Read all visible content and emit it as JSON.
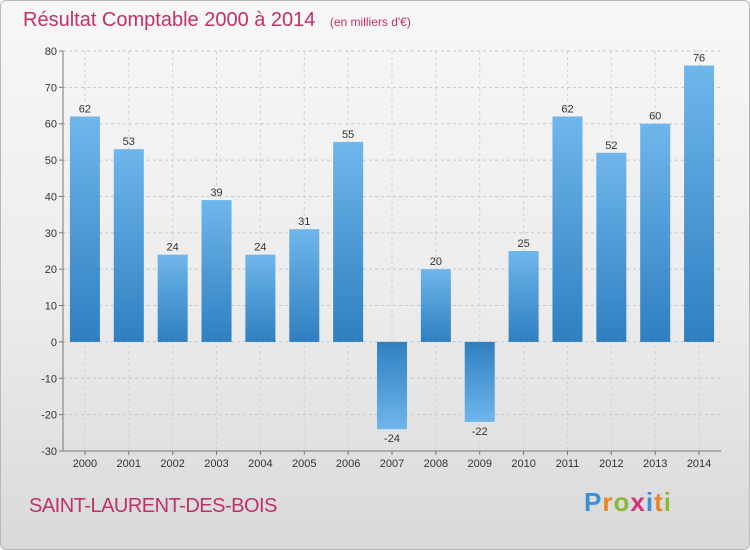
{
  "header": {
    "title": "Résultat Comptable 2000 à 2014",
    "unit": "(en milliers d'€)"
  },
  "footer": {
    "commune": "SAINT-LAURENT-DES-BOIS",
    "logo_letters": [
      "P",
      "r",
      "o",
      "x",
      "i",
      "t",
      "i"
    ],
    "logo_colors": [
      "#3b8fd6",
      "#e8842a",
      "#8ab83a",
      "#d0357a",
      "#3b8fd6",
      "#e8842a",
      "#8ab83a"
    ]
  },
  "colors": {
    "bar_top": "#6fb6ec",
    "bar_bottom": "#2f7fc0",
    "title": "#c0306a"
  },
  "chart_data": {
    "type": "bar",
    "title": "Résultat Comptable 2000 à 2014",
    "xlabel": "",
    "ylabel": "(en milliers d'€)",
    "categories": [
      "2000",
      "2001",
      "2002",
      "2003",
      "2004",
      "2005",
      "2006",
      "2007",
      "2008",
      "2009",
      "2010",
      "2011",
      "2012",
      "2013",
      "2014"
    ],
    "values": [
      62,
      53,
      24,
      39,
      24,
      31,
      55,
      -24,
      20,
      -22,
      25,
      62,
      52,
      60,
      76
    ],
    "ylim": [
      -30,
      80
    ],
    "yticks": [
      -30,
      -20,
      -10,
      0,
      10,
      20,
      30,
      40,
      50,
      60,
      70,
      80
    ],
    "grid": true
  }
}
